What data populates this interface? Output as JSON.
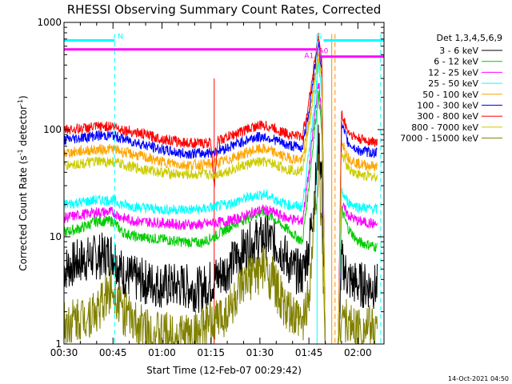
{
  "chart_data": {
    "type": "line",
    "title": "RHESSI Observing Summary Count Rates, Corrected",
    "xlabel": "Start Time (12-Feb-07 00:29:42)",
    "ylabel_main": "Corrected Count Rate (s",
    "ylabel_sup1": "-1",
    "ylabel_mid": " detector",
    "ylabel_sup2": "-1",
    "ylabel_end": ")",
    "x_range_minutes": [
      30,
      128
    ],
    "y_range": [
      1,
      1000
    ],
    "y_scale": "log",
    "x_ticks": [
      {
        "t": 30,
        "label": "00:30"
      },
      {
        "t": 45,
        "label": "00:45"
      },
      {
        "t": 60,
        "label": "01:00"
      },
      {
        "t": 75,
        "label": "01:15"
      },
      {
        "t": 90,
        "label": "01:30"
      },
      {
        "t": 105,
        "label": "01:45"
      },
      {
        "t": 120,
        "label": "02:00"
      }
    ],
    "y_ticks": [
      {
        "v": 1,
        "label": "1"
      },
      {
        "v": 10,
        "label": "10"
      },
      {
        "v": 100,
        "label": "100"
      },
      {
        "v": 1000,
        "label": "1000"
      }
    ],
    "legend_header": "Det 1,3,4,5,6,9",
    "legend_position": "right",
    "series": [
      {
        "name": "3 - 6 keV",
        "color": "#000000",
        "points": [
          [
            30,
            5
          ],
          [
            35,
            6
          ],
          [
            40,
            6.5
          ],
          [
            45,
            7
          ],
          [
            48,
            4.5
          ],
          [
            52,
            4
          ],
          [
            60,
            3.5
          ],
          [
            66,
            3.5
          ],
          [
            72,
            3.2
          ],
          [
            76,
            4
          ],
          [
            80,
            5
          ],
          [
            84,
            7
          ],
          [
            88,
            9
          ],
          [
            92,
            10
          ],
          [
            96,
            8
          ],
          [
            100,
            5
          ],
          [
            103,
            4.5
          ],
          [
            105,
            8
          ],
          [
            107,
            30
          ],
          [
            108,
            75
          ],
          [
            109,
            35
          ],
          [
            110,
            1
          ],
          [
            114,
            1
          ],
          [
            115,
            6
          ],
          [
            117,
            4
          ],
          [
            120,
            3.6
          ],
          [
            126,
            3.4
          ]
        ]
      },
      {
        "name": "6 - 12 keV",
        "color": "#00cc00",
        "points": [
          [
            30,
            11
          ],
          [
            35,
            12
          ],
          [
            40,
            14
          ],
          [
            45,
            14
          ],
          [
            48,
            11
          ],
          [
            52,
            10
          ],
          [
            60,
            9.5
          ],
          [
            66,
            9
          ],
          [
            72,
            8.8
          ],
          [
            76,
            10
          ],
          [
            80,
            12
          ],
          [
            84,
            14
          ],
          [
            88,
            16
          ],
          [
            91,
            17
          ],
          [
            94,
            15
          ],
          [
            98,
            12
          ],
          [
            103,
            9
          ],
          [
            105,
            30
          ],
          [
            107,
            120
          ],
          [
            108,
            220
          ],
          [
            109,
            90
          ],
          [
            110,
            1
          ],
          [
            114,
            1
          ],
          [
            115,
            18
          ],
          [
            117,
            12
          ],
          [
            120,
            9
          ],
          [
            126,
            8
          ]
        ]
      },
      {
        "name": "12 - 25 keV",
        "color": "#ff00ff",
        "points": [
          [
            30,
            15
          ],
          [
            35,
            16
          ],
          [
            40,
            17
          ],
          [
            45,
            17
          ],
          [
            48,
            15
          ],
          [
            52,
            14
          ],
          [
            60,
            13.5
          ],
          [
            66,
            13
          ],
          [
            72,
            13
          ],
          [
            76,
            13.5
          ],
          [
            80,
            14
          ],
          [
            84,
            15
          ],
          [
            88,
            17
          ],
          [
            91,
            18
          ],
          [
            94,
            17
          ],
          [
            98,
            15
          ],
          [
            103,
            14
          ],
          [
            105,
            40
          ],
          [
            107,
            160
          ],
          [
            108,
            280
          ],
          [
            109,
            120
          ],
          [
            110,
            1
          ],
          [
            114,
            1
          ],
          [
            115,
            20
          ],
          [
            117,
            16
          ],
          [
            120,
            14
          ],
          [
            126,
            13
          ]
        ]
      },
      {
        "name": "25 - 50 keV",
        "color": "#00ffff",
        "points": [
          [
            30,
            20
          ],
          [
            35,
            21
          ],
          [
            40,
            22
          ],
          [
            45,
            22
          ],
          [
            48,
            20
          ],
          [
            52,
            19
          ],
          [
            60,
            18
          ],
          [
            66,
            18
          ],
          [
            72,
            18
          ],
          [
            76,
            19
          ],
          [
            80,
            20
          ],
          [
            84,
            22
          ],
          [
            88,
            24
          ],
          [
            91,
            25
          ],
          [
            94,
            23
          ],
          [
            98,
            20
          ],
          [
            103,
            19
          ],
          [
            105,
            60
          ],
          [
            107,
            220
          ],
          [
            108,
            400
          ],
          [
            109,
            200
          ],
          [
            110,
            1
          ],
          [
            114,
            1
          ],
          [
            115,
            26
          ],
          [
            117,
            21
          ],
          [
            120,
            19
          ],
          [
            126,
            18
          ]
        ]
      },
      {
        "name": "50 - 100 keV",
        "color": "#ffa500",
        "points": [
          [
            30,
            60
          ],
          [
            35,
            63
          ],
          [
            40,
            65
          ],
          [
            45,
            66
          ],
          [
            48,
            62
          ],
          [
            52,
            58
          ],
          [
            60,
            50
          ],
          [
            66,
            47
          ],
          [
            72,
            47
          ],
          [
            76,
            48
          ],
          [
            80,
            52
          ],
          [
            84,
            58
          ],
          [
            88,
            64
          ],
          [
            91,
            66
          ],
          [
            94,
            62
          ],
          [
            98,
            55
          ],
          [
            103,
            52
          ],
          [
            105,
            120
          ],
          [
            107,
            350
          ],
          [
            108,
            520
          ],
          [
            109,
            300
          ],
          [
            110,
            1
          ],
          [
            114,
            1
          ],
          [
            115,
            80
          ],
          [
            117,
            55
          ],
          [
            120,
            48
          ],
          [
            126,
            45
          ]
        ]
      },
      {
        "name": "100 - 300 keV",
        "color": "#0000ff",
        "points": [
          [
            30,
            80
          ],
          [
            35,
            84
          ],
          [
            40,
            88
          ],
          [
            45,
            88
          ],
          [
            48,
            82
          ],
          [
            52,
            76
          ],
          [
            60,
            65
          ],
          [
            66,
            60
          ],
          [
            72,
            60
          ],
          [
            76,
            62
          ],
          [
            80,
            68
          ],
          [
            84,
            76
          ],
          [
            88,
            84
          ],
          [
            91,
            86
          ],
          [
            94,
            82
          ],
          [
            98,
            72
          ],
          [
            103,
            68
          ],
          [
            105,
            150
          ],
          [
            107,
            420
          ],
          [
            108,
            620
          ],
          [
            109,
            350
          ],
          [
            110,
            1
          ],
          [
            114,
            1
          ],
          [
            115,
            110
          ],
          [
            117,
            75
          ],
          [
            120,
            64
          ],
          [
            126,
            60
          ]
        ]
      },
      {
        "name": "300 - 800 keV",
        "color": "#ff0000",
        "points": [
          [
            30,
            100
          ],
          [
            35,
            102
          ],
          [
            40,
            106
          ],
          [
            45,
            108
          ],
          [
            48,
            100
          ],
          [
            52,
            94
          ],
          [
            60,
            82
          ],
          [
            66,
            76
          ],
          [
            72,
            74
          ],
          [
            75,
            76
          ],
          [
            76,
            30
          ],
          [
            77,
            78
          ],
          [
            80,
            85
          ],
          [
            84,
            95
          ],
          [
            88,
            106
          ],
          [
            91,
            110
          ],
          [
            94,
            104
          ],
          [
            98,
            92
          ],
          [
            103,
            86
          ],
          [
            105,
            180
          ],
          [
            107,
            500
          ],
          [
            108,
            750
          ],
          [
            109,
            400
          ],
          [
            110,
            1
          ],
          [
            114,
            1
          ],
          [
            115,
            140
          ],
          [
            117,
            95
          ],
          [
            120,
            82
          ],
          [
            126,
            76
          ]
        ]
      },
      {
        "name": "800 - 7000 keV",
        "color": "#cccc00",
        "points": [
          [
            30,
            46
          ],
          [
            35,
            48
          ],
          [
            40,
            50
          ],
          [
            45,
            50
          ],
          [
            48,
            47
          ],
          [
            52,
            44
          ],
          [
            60,
            40
          ],
          [
            66,
            38
          ],
          [
            72,
            38
          ],
          [
            76,
            38
          ],
          [
            80,
            41
          ],
          [
            84,
            45
          ],
          [
            88,
            49
          ],
          [
            91,
            50
          ],
          [
            94,
            48
          ],
          [
            98,
            43
          ],
          [
            103,
            41
          ],
          [
            105,
            100
          ],
          [
            107,
            300
          ],
          [
            108,
            480
          ],
          [
            109,
            260
          ],
          [
            110,
            1
          ],
          [
            114,
            1
          ],
          [
            115,
            60
          ],
          [
            117,
            44
          ],
          [
            120,
            38
          ],
          [
            126,
            36
          ]
        ]
      },
      {
        "name": "7000 - 15000 keV",
        "color": "#808000",
        "points": [
          [
            30,
            1.5
          ],
          [
            36,
            1.8
          ],
          [
            40,
            2
          ],
          [
            45,
            3.5
          ],
          [
            48,
            2
          ],
          [
            52,
            1.5
          ],
          [
            60,
            1.2
          ],
          [
            66,
            1.2
          ],
          [
            72,
            1.3
          ],
          [
            76,
            1.6
          ],
          [
            80,
            2
          ],
          [
            84,
            3
          ],
          [
            88,
            4.5
          ],
          [
            91,
            5
          ],
          [
            94,
            4
          ],
          [
            98,
            2
          ],
          [
            103,
            1.5
          ],
          [
            105,
            3
          ],
          [
            107,
            20
          ],
          [
            108,
            40
          ],
          [
            109,
            12
          ],
          [
            110,
            1
          ],
          [
            114,
            1
          ],
          [
            115,
            2
          ],
          [
            117,
            1.5
          ],
          [
            120,
            1.4
          ],
          [
            126,
            1.4
          ]
        ]
      }
    ],
    "flag_lines": [
      {
        "label": "N",
        "y": 680,
        "t_start": 30,
        "t_end": 45.5,
        "color": "#00ffff"
      },
      {
        "label": "S",
        "y": 680,
        "t_start": 109.5,
        "t_end": 128,
        "color": "#00ffff"
      },
      {
        "label": "A1",
        "y": 560,
        "t_start": 30,
        "t_end": 107.5,
        "color": "#ff00ff"
      },
      {
        "label": "A0",
        "y": 480,
        "t_start": 108.5,
        "t_end": 128,
        "color": "#ff00ff"
      }
    ],
    "vertical_markers": [
      {
        "t": 45.5,
        "color": "#00ffff",
        "style": "dashed"
      },
      {
        "t": 107.5,
        "color": "#00ffff",
        "style": "solid"
      },
      {
        "t": 112,
        "color": "#ff8c00",
        "style": "solid"
      },
      {
        "t": 113,
        "color": "#ff8c00",
        "style": "dashed"
      },
      {
        "t": 127,
        "color": "#00ffff",
        "style": "dashed"
      }
    ],
    "background_markers": [
      {
        "t": 76,
        "color": "#ff0000",
        "style": "solid"
      }
    ],
    "footer_timestamp": "14-Oct-2021 04:50"
  }
}
